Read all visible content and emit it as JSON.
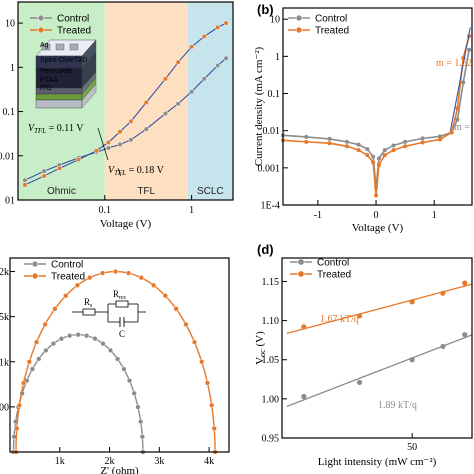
{
  "colors": {
    "control": "#8c8c8c",
    "treated": "#e6782a",
    "fit_blue": "#3c50a0",
    "ohmic_bg": "#c7eec7",
    "tfl_bg": "#fde0c2",
    "sclc_bg": "#c6e4ec"
  },
  "chart_data": [
    {
      "type": "line",
      "panel_label": "",
      "xlabel": "Voltage (V)",
      "ylabel": "",
      "xscale": "log",
      "yscale": "log",
      "xlim": [
        0.01,
        3
      ],
      "ylim": [
        0.001,
        30
      ],
      "xticks": [
        {
          "v": 0.1,
          "t": "0.1"
        },
        {
          "v": 1,
          "t": "1"
        }
      ],
      "yticks": [
        {
          "v": 0.001,
          "t": "01"
        },
        {
          "v": 0.01,
          "t": "0.01"
        },
        {
          "v": 0.1,
          "t": "0.1"
        },
        {
          "v": 1,
          "t": "1"
        },
        {
          "v": 10,
          "t": "10"
        }
      ],
      "regions": [
        {
          "name": "Ohmic",
          "x0": 0.01,
          "x1": 0.1
        },
        {
          "name": "TFL",
          "x0": 0.1,
          "x1": 0.9
        },
        {
          "name": "SCLC",
          "x0": 0.9,
          "x1": 3
        }
      ],
      "annotations": [
        {
          "sub": "TFL",
          "text": "= 0.11 V",
          "x": 0.11
        },
        {
          "sub": "TFL",
          "text": "= 0.18 V",
          "x": 0.18
        }
      ],
      "inset_layers": [
        "Ag",
        "Spiro-OMeTAD",
        "Perovskite",
        "PTAA",
        "ITO"
      ],
      "legend": [
        "Control",
        "Treated"
      ],
      "series": [
        {
          "name": "Control",
          "x": [
            0.012,
            0.02,
            0.03,
            0.05,
            0.08,
            0.11,
            0.15,
            0.2,
            0.3,
            0.5,
            0.7,
            1.0,
            1.4,
            2.0,
            2.5
          ],
          "y": [
            0.0028,
            0.0045,
            0.0062,
            0.009,
            0.012,
            0.015,
            0.018,
            0.023,
            0.04,
            0.09,
            0.15,
            0.28,
            0.55,
            1.1,
            1.6
          ]
        },
        {
          "name": "Treated",
          "x": [
            0.012,
            0.02,
            0.03,
            0.05,
            0.08,
            0.11,
            0.15,
            0.2,
            0.3,
            0.5,
            0.7,
            1.0,
            1.4,
            2.0,
            2.5
          ],
          "y": [
            0.0022,
            0.0035,
            0.0052,
            0.0082,
            0.013,
            0.02,
            0.035,
            0.06,
            0.16,
            0.55,
            1.3,
            2.9,
            5.0,
            8.0,
            10.0
          ]
        }
      ]
    },
    {
      "type": "line",
      "panel_label": "(b)",
      "xlabel": "Voltage (V)",
      "ylabel": "Current density (mA cm⁻²)",
      "yscale": "log",
      "xlim": [
        -1.6,
        1.65
      ],
      "ylim": [
        0.0001,
        20
      ],
      "xticks": [
        {
          "v": -1,
          "t": "-1"
        },
        {
          "v": 0,
          "t": "0"
        },
        {
          "v": 1,
          "t": "1"
        }
      ],
      "yticks": [
        {
          "v": 0.0001,
          "t": "1E-4"
        },
        {
          "v": 0.001,
          "t": "0.001"
        },
        {
          "v": 0.01,
          "t": "0.01"
        },
        {
          "v": 0.1,
          "t": "0.1"
        },
        {
          "v": 1,
          "t": "1"
        },
        {
          "v": 10,
          "t": "10"
        }
      ],
      "annotations": [
        {
          "text": "m = 1.62",
          "color": "#e6782a"
        },
        {
          "text": "m =",
          "color": "#8c8c8c"
        }
      ],
      "legend": [
        "Control",
        "Treated"
      ],
      "series": [
        {
          "name": "Control",
          "x": [
            -1.6,
            -1.2,
            -0.8,
            -0.5,
            -0.3,
            -0.15,
            -0.05,
            0,
            0.05,
            0.15,
            0.3,
            0.5,
            0.8,
            1.1,
            1.3,
            1.4,
            1.5,
            1.6
          ],
          "y": [
            0.0075,
            0.0068,
            0.006,
            0.005,
            0.0042,
            0.0032,
            0.002,
            0.0003,
            0.0018,
            0.003,
            0.004,
            0.005,
            0.0062,
            0.007,
            0.009,
            0.02,
            0.2,
            1.5
          ]
        },
        {
          "name": "Treated",
          "x": [
            -1.6,
            -1.2,
            -0.8,
            -0.5,
            -0.3,
            -0.15,
            -0.05,
            0,
            0.05,
            0.15,
            0.3,
            0.5,
            0.8,
            1.1,
            1.3,
            1.4,
            1.5,
            1.6
          ],
          "y": [
            0.0055,
            0.005,
            0.0046,
            0.0038,
            0.003,
            0.0022,
            0.0014,
            0.00018,
            0.0012,
            0.0022,
            0.003,
            0.0038,
            0.0048,
            0.0058,
            0.009,
            0.04,
            0.9,
            3.5
          ]
        }
      ]
    },
    {
      "type": "scatter",
      "panel_label": "",
      "xlabel": "Z' (ohm)",
      "ylabel": "",
      "xlim": [
        0,
        4400
      ],
      "ylim": [
        0,
        2150
      ],
      "xticks": [
        {
          "v": 1000,
          "t": "1k"
        },
        {
          "v": 2000,
          "t": "2k"
        },
        {
          "v": 3000,
          "t": "3k"
        },
        {
          "v": 4000,
          "t": "4k"
        }
      ],
      "yticks": [
        {
          "v": 500,
          "t": "00"
        },
        {
          "v": 1000,
          "t": "1k"
        },
        {
          "v": 1500,
          "t": "5k"
        },
        {
          "v": 2000,
          "t": "2k"
        }
      ],
      "circuit_labels": {
        "rs": "R",
        "rs_sub": "s",
        "rrec": "R",
        "rrec_sub": "rec",
        "c": "C"
      },
      "legend": [
        "Control",
        "Treated"
      ],
      "series": [
        {
          "name": "Control",
          "center": [
            1370,
            0
          ],
          "radius": 1300
        },
        {
          "name": "Treated",
          "center": [
            2120,
            0
          ],
          "radius": 2000
        }
      ]
    },
    {
      "type": "scatter",
      "panel_label": "(d)",
      "xlabel": "Light intensity (mW cm⁻²)",
      "ylabel": "V",
      "ylabel_sub": "oc",
      "ylabel_unit": " (V)",
      "xscale": "log",
      "xlim": [
        9,
        110
      ],
      "ylim": [
        0.95,
        1.18
      ],
      "xticks": [
        {
          "v": 50,
          "t": "50"
        }
      ],
      "yticks": [
        {
          "v": 0.95,
          "t": "0.95"
        },
        {
          "v": 1.0,
          "t": "1.00"
        },
        {
          "v": 1.05,
          "t": "1.05"
        },
        {
          "v": 1.1,
          "t": "1.10"
        },
        {
          "v": 1.15,
          "t": "1.15"
        }
      ],
      "annotations": [
        {
          "text": "1.67 kT/q",
          "color": "#e6782a"
        },
        {
          "text": "1.89 kT/q",
          "color": "#8c8c8c"
        }
      ],
      "legend": [
        "Control",
        "Treated"
      ],
      "series": [
        {
          "name": "Control",
          "x": [
            12,
            25,
            50,
            75,
            100
          ],
          "y": [
            1.003,
            1.021,
            1.05,
            1.067,
            1.082
          ]
        },
        {
          "name": "Treated",
          "x": [
            12,
            25,
            50,
            75,
            100
          ],
          "y": [
            1.092,
            1.106,
            1.124,
            1.135,
            1.148
          ]
        }
      ]
    }
  ]
}
